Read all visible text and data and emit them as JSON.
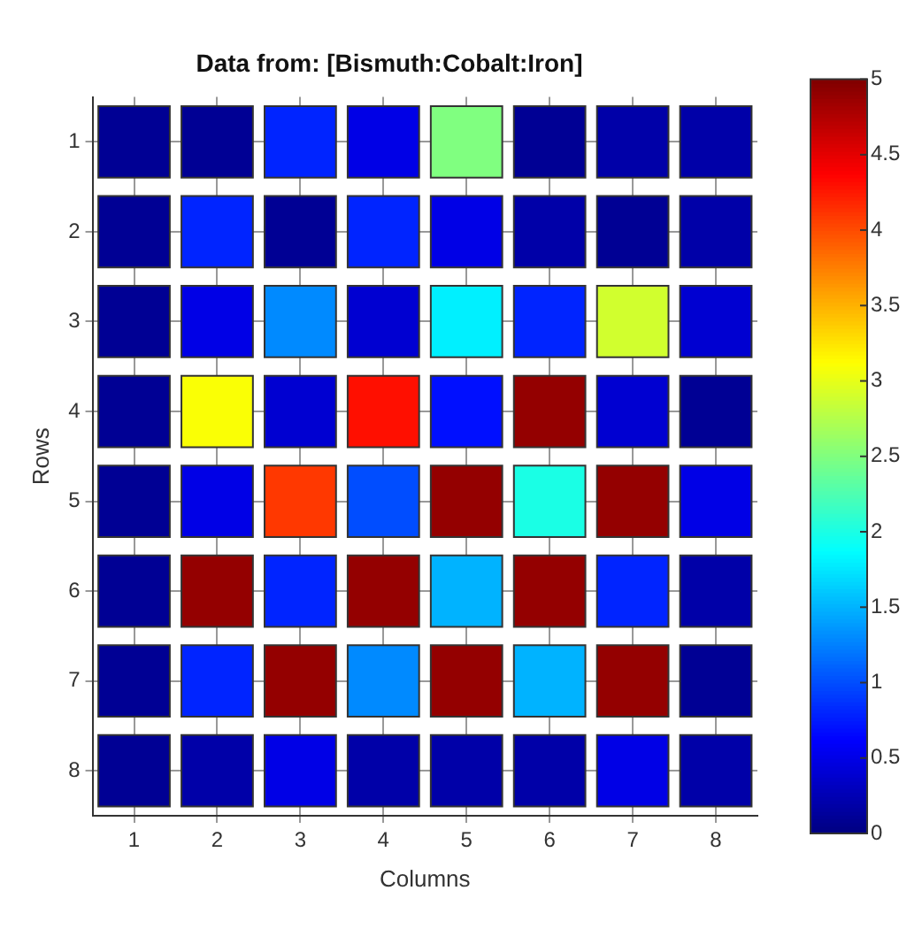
{
  "chart_data": {
    "type": "heatmap",
    "title": "Data from: [Bismuth:Cobalt:Iron]",
    "xlabel": "Columns",
    "ylabel": "Rows",
    "categories": [
      "1",
      "2",
      "3",
      "4",
      "5",
      "6",
      "7",
      "8"
    ],
    "y_categories": [
      "1",
      "2",
      "3",
      "4",
      "5",
      "6",
      "7",
      "8"
    ],
    "cells": [
      [
        0.1,
        0.1,
        0.8,
        0.5,
        2.5,
        0.1,
        0.2,
        0.2
      ],
      [
        0.1,
        0.8,
        0.1,
        0.8,
        0.5,
        0.2,
        0.1,
        0.2
      ],
      [
        0.1,
        0.5,
        1.3,
        0.4,
        1.8,
        0.8,
        2.9,
        0.4
      ],
      [
        0.1,
        3.1,
        0.4,
        4.3,
        0.7,
        4.9,
        0.4,
        0.1
      ],
      [
        0.1,
        0.5,
        4.1,
        1.0,
        4.9,
        2.0,
        4.9,
        0.5
      ],
      [
        0.1,
        4.9,
        0.8,
        4.9,
        1.5,
        4.9,
        0.8,
        0.2
      ],
      [
        0.1,
        0.8,
        4.9,
        1.3,
        4.9,
        1.5,
        4.9,
        0.1
      ],
      [
        0.1,
        0.2,
        0.5,
        0.2,
        0.2,
        0.2,
        0.5,
        0.2
      ]
    ],
    "clim": [
      0,
      5
    ],
    "cticks": [
      0,
      0.5,
      1,
      1.5,
      2,
      2.5,
      3,
      3.5,
      4,
      4.5,
      5
    ],
    "grid": true
  }
}
